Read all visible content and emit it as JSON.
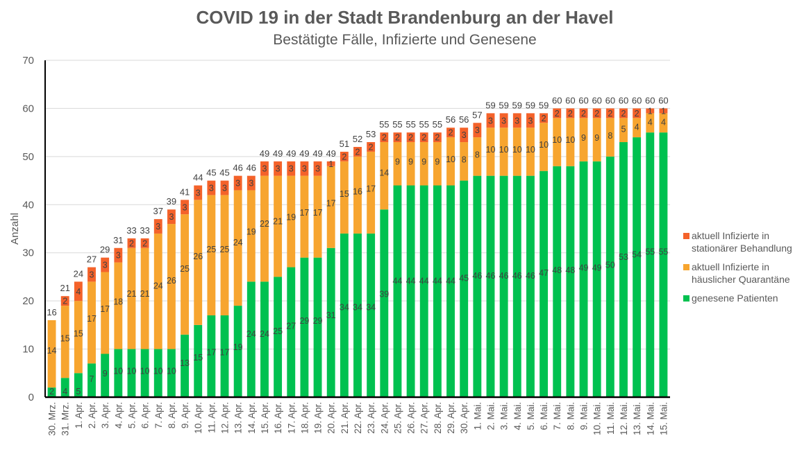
{
  "chart_data": {
    "type": "bar",
    "stacked": true,
    "title": "COVID 19 in der Stadt Brandenburg an der Havel",
    "subtitle": "Bestätigte Fälle, Infizierte und Genesene",
    "xlabel": "",
    "ylabel": "Anzahl",
    "ylim": [
      0,
      70
    ],
    "yticks": [
      0,
      10,
      20,
      30,
      40,
      50,
      60,
      70
    ],
    "grid": true,
    "legend_position": "right",
    "categories": [
      "30. Mrz.",
      "31. Mrz.",
      "1. Apr.",
      "2. Apr.",
      "3. Apr.",
      "4. Apr.",
      "5. Apr.",
      "6. Apr.",
      "7. Apr.",
      "8. Apr.",
      "9. Apr.",
      "10. Apr.",
      "11. Apr.",
      "12. Apr.",
      "13. Apr.",
      "14. Apr.",
      "15. Apr.",
      "16. Apr.",
      "17. Apr.",
      "18. Apr.",
      "19. Apr.",
      "20. Apr.",
      "21. Apr.",
      "22. Apr.",
      "23. Apr.",
      "24. Apr.",
      "25. Apr.",
      "26. Apr.",
      "27. Apr.",
      "28. Apr.",
      "29. Apr.",
      "30. Apr.",
      "1. Mai.",
      "2. Mai.",
      "3. Mai.",
      "4. Mai.",
      "5. Mai.",
      "6. Mai.",
      "7. Mai.",
      "8. Mai.",
      "9. Mai.",
      "10. Mai.",
      "11. Mai.",
      "12. Mai.",
      "13. Mai.",
      "14. Mai.",
      "15. Mai."
    ],
    "series": [
      {
        "name": "genesene Patienten",
        "color": "#00c150",
        "values": [
          2,
          4,
          5,
          7,
          9,
          10,
          10,
          10,
          10,
          10,
          13,
          15,
          17,
          17,
          19,
          24,
          24,
          25,
          27,
          29,
          29,
          31,
          34,
          34,
          34,
          39,
          44,
          44,
          44,
          44,
          44,
          45,
          46,
          46,
          46,
          46,
          46,
          47,
          48,
          48,
          49,
          49,
          50,
          53,
          54,
          55,
          55
        ]
      },
      {
        "name": "aktuell Infizierte in häuslicher Quarantäne",
        "color": "#f7a52f",
        "values": [
          14,
          15,
          15,
          17,
          17,
          18,
          21,
          21,
          24,
          26,
          25,
          26,
          25,
          25,
          24,
          19,
          22,
          21,
          19,
          17,
          17,
          17,
          15,
          16,
          17,
          14,
          9,
          9,
          9,
          9,
          10,
          8,
          8,
          10,
          10,
          10,
          10,
          10,
          10,
          10,
          9,
          9,
          8,
          5,
          4,
          4,
          4
        ]
      },
      {
        "name": "aktuell Infizierte in stationärer Behandlung",
        "color": "#f4622a",
        "values": [
          0,
          2,
          4,
          3,
          3,
          3,
          2,
          2,
          3,
          3,
          3,
          3,
          3,
          3,
          3,
          3,
          3,
          3,
          3,
          3,
          3,
          1,
          2,
          2,
          2,
          2,
          2,
          2,
          2,
          2,
          2,
          3,
          3,
          3,
          3,
          3,
          3,
          2,
          2,
          2,
          2,
          2,
          2,
          2,
          2,
          1,
          1
        ]
      }
    ],
    "totals": [
      16,
      21,
      24,
      27,
      29,
      31,
      33,
      33,
      37,
      39,
      41,
      44,
      45,
      45,
      46,
      46,
      49,
      49,
      49,
      49,
      49,
      49,
      51,
      52,
      53,
      55,
      55,
      55,
      55,
      55,
      56,
      56,
      57,
      59,
      59,
      59,
      59,
      59,
      60,
      60,
      60,
      60,
      60,
      60,
      60,
      60,
      60
    ],
    "legend": [
      {
        "lines": [
          "aktuell Infizierte in",
          "stationärer Behandlung"
        ],
        "color": "#f4622a"
      },
      {
        "lines": [
          "aktuell Infizierte in",
          "häuslicher Quarantäne"
        ],
        "color": "#f7a52f"
      },
      {
        "lines": [
          "genesene Patienten"
        ],
        "color": "#00c150"
      }
    ]
  }
}
